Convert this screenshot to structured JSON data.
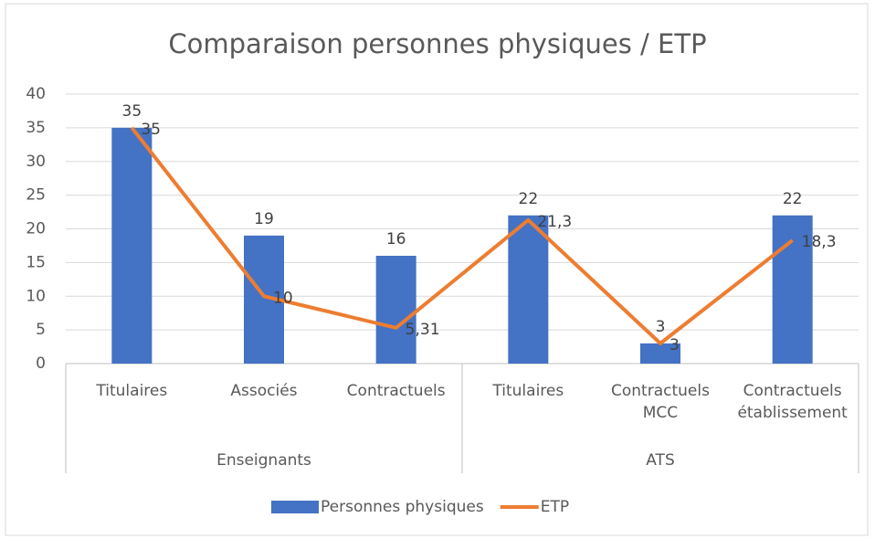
{
  "chart_data": {
    "type": "bar-line",
    "title": "Comparaison personnes physiques / ETP",
    "groups": [
      {
        "name": "Enseignants",
        "categories": [
          "Titulaires",
          "Associés",
          "Contractuels"
        ]
      },
      {
        "name": "ATS",
        "categories": [
          "Titulaires",
          "Contractuels MCC",
          "Contractuels établissement"
        ]
      }
    ],
    "series": [
      {
        "name": "Personnes physiques",
        "type": "bar",
        "color": "#4472c4",
        "values": [
          35,
          19,
          16,
          22,
          3,
          22
        ]
      },
      {
        "name": "ETP",
        "type": "line",
        "color": "#ed7d31",
        "values": [
          35,
          10,
          5.31,
          21.3,
          3,
          18.3
        ],
        "value_labels": [
          "35",
          "10",
          "5,31",
          "21,3",
          "3",
          "18,3"
        ]
      }
    ],
    "ylim": [
      0,
      40
    ],
    "yticks": [
      0,
      5,
      10,
      15,
      20,
      25,
      30,
      35,
      40
    ],
    "grid": true,
    "legend": "bottom"
  }
}
